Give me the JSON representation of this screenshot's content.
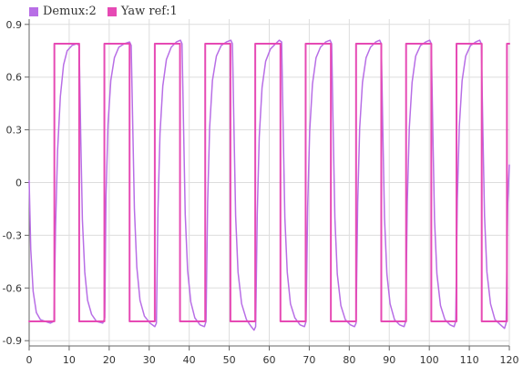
{
  "chart_data": {
    "type": "line",
    "title": "",
    "xlabel": "",
    "ylabel": "",
    "xlim": [
      0,
      120
    ],
    "ylim": [
      -0.93,
      0.93
    ],
    "grid": true,
    "legend_position": "top-left",
    "x_ticks": [
      0,
      10,
      20,
      30,
      40,
      50,
      60,
      70,
      80,
      90,
      100,
      110,
      120
    ],
    "y_ticks": [
      0.9,
      0.6,
      0.3,
      0,
      -0.3,
      -0.6,
      -0.9
    ],
    "x_tick_labels": [
      "0",
      "10",
      "20",
      "30",
      "40",
      "50",
      "60",
      "70",
      "80",
      "90",
      "100",
      "110",
      "120"
    ],
    "y_tick_labels": [
      "0.9",
      "0.6",
      "0.3",
      "0",
      "-0.3",
      "-0.6",
      "-0.9"
    ],
    "series": [
      {
        "name": "Demux:2",
        "color": "#b86ee6",
        "kind": "response",
        "values": [
          [
            0,
            0.01
          ],
          [
            0.4,
            -0.38
          ],
          [
            1.0,
            -0.62
          ],
          [
            1.8,
            -0.74
          ],
          [
            2.8,
            -0.78
          ],
          [
            4.0,
            -0.79
          ],
          [
            5.3,
            -0.8
          ],
          [
            6.2,
            -0.79
          ],
          [
            6.6,
            -0.25
          ],
          [
            7.1,
            0.18
          ],
          [
            7.8,
            0.49
          ],
          [
            8.6,
            0.67
          ],
          [
            9.5,
            0.75
          ],
          [
            10.7,
            0.78
          ],
          [
            11.9,
            0.79
          ],
          [
            12.5,
            0.78
          ],
          [
            12.9,
            0.25
          ],
          [
            13.3,
            -0.21
          ],
          [
            13.9,
            -0.51
          ],
          [
            14.6,
            -0.67
          ],
          [
            15.6,
            -0.75
          ],
          [
            16.8,
            -0.79
          ],
          [
            18.4,
            -0.8
          ],
          [
            18.9,
            -0.77
          ],
          [
            19.2,
            -0.08
          ],
          [
            19.7,
            0.33
          ],
          [
            20.4,
            0.58
          ],
          [
            21.3,
            0.71
          ],
          [
            22.4,
            0.77
          ],
          [
            23.8,
            0.79
          ],
          [
            25.1,
            0.8
          ],
          [
            25.5,
            0.78
          ],
          [
            25.9,
            0.31
          ],
          [
            26.3,
            -0.15
          ],
          [
            26.9,
            -0.48
          ],
          [
            27.7,
            -0.67
          ],
          [
            28.8,
            -0.76
          ],
          [
            30.2,
            -0.8
          ],
          [
            31.4,
            -0.82
          ],
          [
            31.8,
            -0.8
          ],
          [
            32.2,
            -0.15
          ],
          [
            32.7,
            0.28
          ],
          [
            33.4,
            0.55
          ],
          [
            34.3,
            0.7
          ],
          [
            35.5,
            0.77
          ],
          [
            36.8,
            0.8
          ],
          [
            37.8,
            0.81
          ],
          [
            38.2,
            0.79
          ],
          [
            38.6,
            0.3
          ],
          [
            39.0,
            -0.18
          ],
          [
            39.6,
            -0.5
          ],
          [
            40.4,
            -0.68
          ],
          [
            41.4,
            -0.77
          ],
          [
            42.7,
            -0.81
          ],
          [
            43.8,
            -0.82
          ],
          [
            44.2,
            -0.79
          ],
          [
            44.6,
            -0.12
          ],
          [
            45.1,
            0.31
          ],
          [
            45.8,
            0.58
          ],
          [
            46.8,
            0.72
          ],
          [
            48.0,
            0.78
          ],
          [
            49.3,
            0.8
          ],
          [
            50.4,
            0.81
          ],
          [
            50.8,
            0.79
          ],
          [
            51.2,
            0.29
          ],
          [
            51.6,
            -0.19
          ],
          [
            52.2,
            -0.51
          ],
          [
            53.1,
            -0.69
          ],
          [
            54.3,
            -0.78
          ],
          [
            55.5,
            -0.82
          ],
          [
            56.2,
            -0.84
          ],
          [
            56.6,
            -0.82
          ],
          [
            57.0,
            -0.18
          ],
          [
            57.5,
            0.26
          ],
          [
            58.2,
            0.54
          ],
          [
            59.1,
            0.69
          ],
          [
            60.3,
            0.76
          ],
          [
            61.6,
            0.79
          ],
          [
            62.5,
            0.81
          ],
          [
            63.1,
            0.8
          ],
          [
            63.5,
            0.28
          ],
          [
            63.9,
            -0.2
          ],
          [
            64.5,
            -0.51
          ],
          [
            65.3,
            -0.69
          ],
          [
            66.4,
            -0.77
          ],
          [
            67.7,
            -0.81
          ],
          [
            68.8,
            -0.82
          ],
          [
            69.2,
            -0.79
          ],
          [
            69.6,
            -0.14
          ],
          [
            70.1,
            0.29
          ],
          [
            70.8,
            0.56
          ],
          [
            71.7,
            0.71
          ],
          [
            72.8,
            0.77
          ],
          [
            74.1,
            0.8
          ],
          [
            75.2,
            0.81
          ],
          [
            75.6,
            0.79
          ],
          [
            76.0,
            0.27
          ],
          [
            76.4,
            -0.2
          ],
          [
            77.0,
            -0.52
          ],
          [
            77.9,
            -0.7
          ],
          [
            79.0,
            -0.78
          ],
          [
            80.3,
            -0.81
          ],
          [
            81.3,
            -0.82
          ],
          [
            81.7,
            -0.8
          ],
          [
            82.1,
            -0.12
          ],
          [
            82.6,
            0.31
          ],
          [
            83.3,
            0.57
          ],
          [
            84.2,
            0.71
          ],
          [
            85.3,
            0.77
          ],
          [
            86.6,
            0.8
          ],
          [
            87.6,
            0.81
          ],
          [
            88.0,
            0.79
          ],
          [
            88.4,
            0.28
          ],
          [
            88.8,
            -0.2
          ],
          [
            89.4,
            -0.52
          ],
          [
            90.2,
            -0.69
          ],
          [
            91.3,
            -0.78
          ],
          [
            92.6,
            -0.81
          ],
          [
            93.7,
            -0.82
          ],
          [
            94.1,
            -0.79
          ],
          [
            94.5,
            -0.11
          ],
          [
            95.0,
            0.31
          ],
          [
            95.7,
            0.57
          ],
          [
            96.6,
            0.72
          ],
          [
            97.8,
            0.78
          ],
          [
            99.1,
            0.8
          ],
          [
            100.1,
            0.81
          ],
          [
            100.5,
            0.79
          ],
          [
            100.9,
            0.27
          ],
          [
            101.3,
            -0.21
          ],
          [
            101.9,
            -0.52
          ],
          [
            102.8,
            -0.7
          ],
          [
            103.9,
            -0.78
          ],
          [
            105.2,
            -0.81
          ],
          [
            106.2,
            -0.82
          ],
          [
            106.6,
            -0.79
          ],
          [
            107.0,
            -0.1
          ],
          [
            107.5,
            0.32
          ],
          [
            108.2,
            0.58
          ],
          [
            109.1,
            0.72
          ],
          [
            110.3,
            0.78
          ],
          [
            111.6,
            0.8
          ],
          [
            112.6,
            0.81
          ],
          [
            113.0,
            0.79
          ],
          [
            113.4,
            0.28
          ],
          [
            113.8,
            -0.19
          ],
          [
            114.4,
            -0.51
          ],
          [
            115.3,
            -0.69
          ],
          [
            116.4,
            -0.78
          ],
          [
            117.8,
            -0.81
          ],
          [
            118.8,
            -0.83
          ],
          [
            119.2,
            -0.8
          ],
          [
            119.6,
            -0.12
          ],
          [
            120.0,
            0.1
          ]
        ]
      },
      {
        "name": "Yaw ref:1",
        "color": "#e64ab4",
        "kind": "step",
        "values": [
          [
            0,
            -0.79
          ],
          [
            6.3,
            -0.79
          ],
          [
            6.3,
            0.79
          ],
          [
            12.5,
            0.79
          ],
          [
            12.5,
            -0.79
          ],
          [
            18.8,
            -0.79
          ],
          [
            18.8,
            0.79
          ],
          [
            25.1,
            0.79
          ],
          [
            25.1,
            -0.79
          ],
          [
            31.4,
            -0.79
          ],
          [
            31.4,
            0.79
          ],
          [
            37.7,
            0.79
          ],
          [
            37.7,
            -0.79
          ],
          [
            44.0,
            -0.79
          ],
          [
            44.0,
            0.79
          ],
          [
            50.3,
            0.79
          ],
          [
            50.3,
            -0.79
          ],
          [
            56.5,
            -0.79
          ],
          [
            56.5,
            0.79
          ],
          [
            62.8,
            0.79
          ],
          [
            62.8,
            -0.79
          ],
          [
            69.1,
            -0.79
          ],
          [
            69.1,
            0.79
          ],
          [
            75.4,
            0.79
          ],
          [
            75.4,
            -0.79
          ],
          [
            81.7,
            -0.79
          ],
          [
            81.7,
            0.79
          ],
          [
            88.0,
            0.79
          ],
          [
            88.0,
            -0.79
          ],
          [
            94.2,
            -0.79
          ],
          [
            94.2,
            0.79
          ],
          [
            100.5,
            0.79
          ],
          [
            100.5,
            -0.79
          ],
          [
            106.8,
            -0.79
          ],
          [
            106.8,
            0.79
          ],
          [
            113.1,
            0.79
          ],
          [
            113.1,
            -0.79
          ],
          [
            119.4,
            -0.79
          ],
          [
            119.4,
            0.79
          ],
          [
            120.0,
            0.79
          ]
        ]
      }
    ]
  },
  "legend": {
    "items": [
      {
        "label": "Demux:2",
        "color": "#b86ee6"
      },
      {
        "label": "Yaw ref:1",
        "color": "#e64ab4"
      }
    ]
  }
}
